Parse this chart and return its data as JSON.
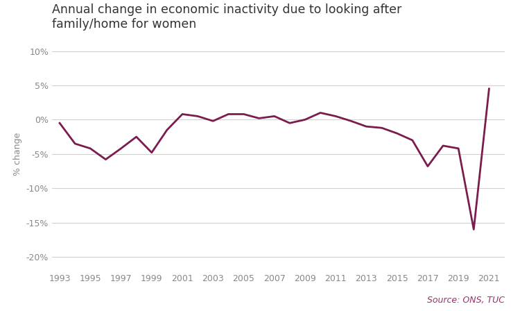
{
  "title": "Annual change in economic inactivity due to looking after\nfamily/home for women",
  "ylabel": "% change",
  "source_text": "Source: ONS, TUC",
  "line_color": "#7b1b4e",
  "background_color": "#ffffff",
  "ylim": [
    -22,
    12
  ],
  "yticks": [
    -20,
    -15,
    -10,
    -5,
    0,
    5,
    10
  ],
  "years": [
    1993,
    1994,
    1995,
    1996,
    1997,
    1998,
    1999,
    2000,
    2001,
    2002,
    2003,
    2004,
    2005,
    2006,
    2007,
    2008,
    2009,
    2010,
    2011,
    2012,
    2013,
    2014,
    2015,
    2016,
    2017,
    2018,
    2019,
    2020,
    2021
  ],
  "values": [
    -0.5,
    -3.5,
    -4.2,
    -5.8,
    -4.2,
    -2.5,
    -4.8,
    -1.5,
    0.8,
    0.5,
    -0.2,
    0.8,
    0.8,
    0.2,
    0.5,
    -0.5,
    0.0,
    1.0,
    0.5,
    -0.2,
    -1.0,
    -1.2,
    -2.0,
    -3.0,
    -6.8,
    -3.8,
    -4.2,
    -16.0,
    4.5
  ],
  "xtick_years": [
    1993,
    1995,
    1997,
    1999,
    2001,
    2003,
    2005,
    2007,
    2009,
    2011,
    2013,
    2015,
    2017,
    2019,
    2021
  ],
  "xlim_left": 1992.5,
  "xlim_right": 2022.0,
  "grid_color": "#d0d0d0",
  "tick_label_color": "#888888",
  "ylabel_color": "#888888",
  "title_color": "#333333",
  "title_fontsize": 12.5,
  "tick_label_fontsize": 9,
  "ylabel_fontsize": 9,
  "source_fontsize": 9,
  "source_color": "#9b3070",
  "line_width": 2.0
}
